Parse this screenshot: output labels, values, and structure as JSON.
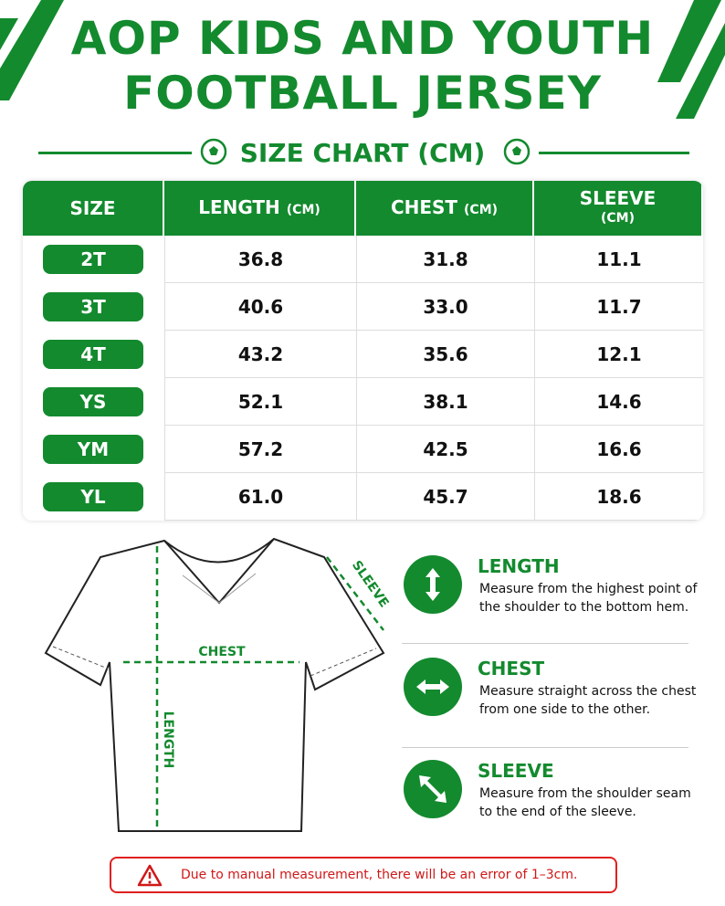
{
  "header": {
    "title_lines": [
      "AOP KIDS AND YOUTH",
      "FOOTBALL JERSEY"
    ],
    "subtitle": "SIZE CHART (CM)"
  },
  "table": {
    "columns": [
      {
        "label": "SIZE"
      },
      {
        "label": "LENGTH",
        "unit": "(CM)"
      },
      {
        "label": "CHEST",
        "unit": "(CM)"
      },
      {
        "label": "SLEEVE",
        "unit": "(CM)"
      }
    ],
    "rows": [
      [
        "2T",
        "36.8",
        "31.8",
        "11.1"
      ],
      [
        "3T",
        "40.6",
        "33.0",
        "11.7"
      ],
      [
        "4T",
        "43.2",
        "35.6",
        "12.1"
      ],
      [
        "YS",
        "52.1",
        "38.1",
        "14.6"
      ],
      [
        "YM",
        "57.2",
        "42.5",
        "16.6"
      ],
      [
        "YL",
        "61.0",
        "45.7",
        "18.6"
      ]
    ]
  },
  "diagram": {
    "chest_label": "CHEST",
    "length_label": "LENGTH",
    "sleeve_label": "SLEEVE"
  },
  "guide": [
    {
      "title": "LENGTH",
      "text": "Measure from the highest point of the shoulder to the bottom hem."
    },
    {
      "title": "CHEST",
      "text": "Measure straight across the chest from one side to the other."
    },
    {
      "title": "SLEEVE",
      "text": "Measure from the shoulder seam to the end of the sleeve."
    }
  ],
  "note": "Due to manual measurement, there will be an error of 1–3cm."
}
